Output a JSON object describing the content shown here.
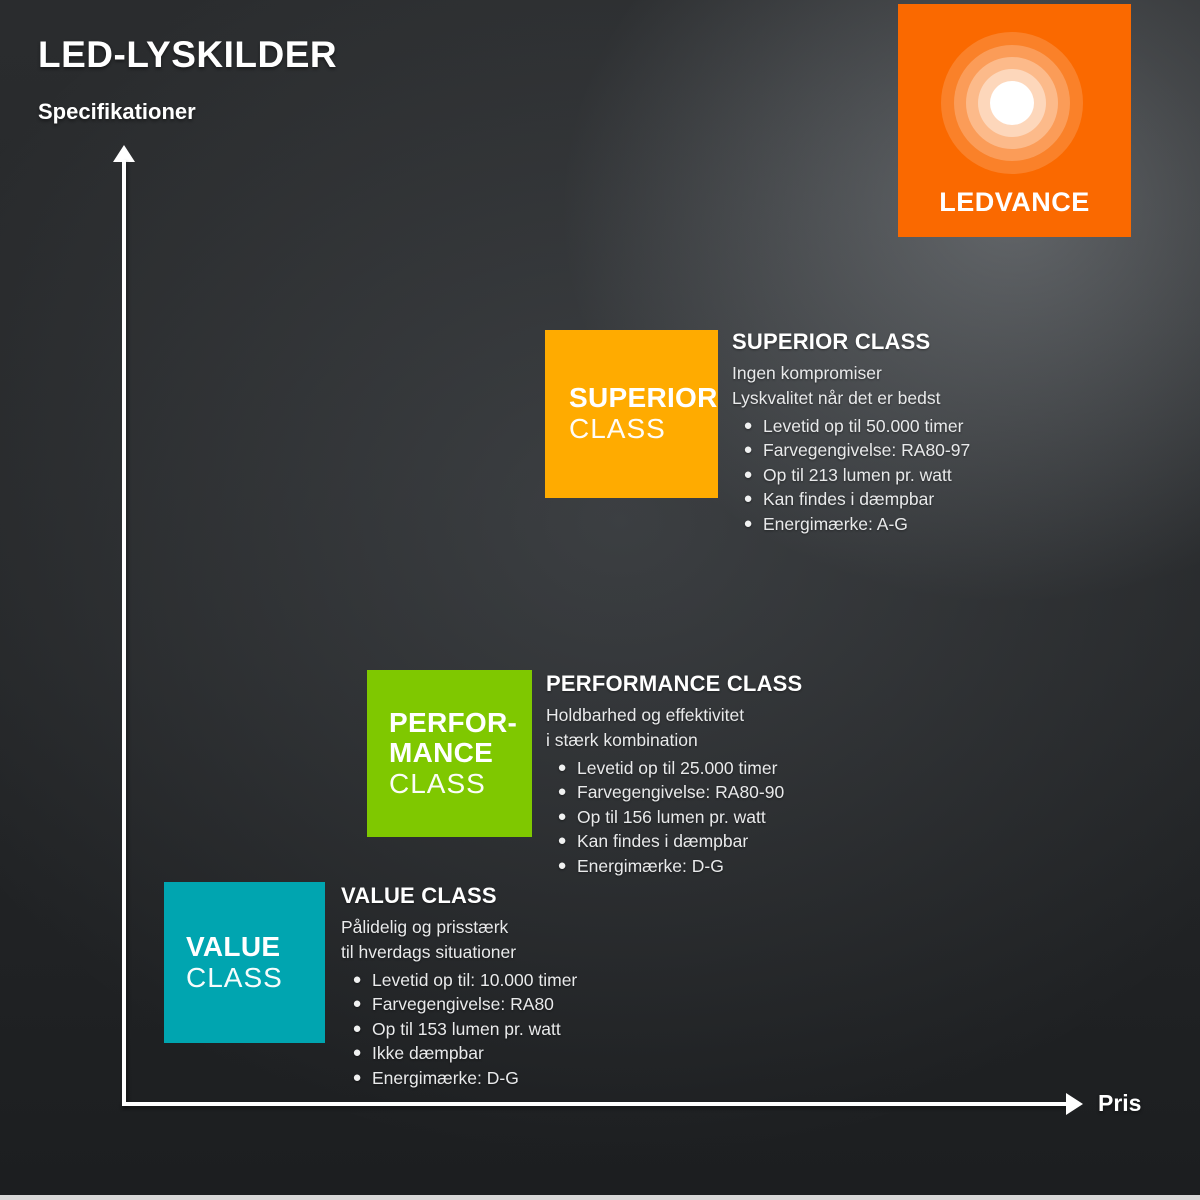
{
  "header": {
    "title": "LED-LYSKILDER",
    "y_axis_label": "Specifikationer",
    "x_axis_label": "Pris"
  },
  "logo": {
    "brand": "LEDVANCE",
    "background_color": "#FA6900"
  },
  "classes": [
    {
      "id": "value",
      "color": "#00A5B0",
      "box_title_lines": [
        "VALUE"
      ],
      "box_subtitle": "CLASS",
      "heading": "VALUE CLASS",
      "subtitle_lines": [
        "Pålidelig og prisstærk",
        "til hverdags situationer"
      ],
      "bullets": [
        "Levetid op til: 10.000 timer",
        "Farvegengivelse: RA80",
        "Op til 153 lumen pr. watt",
        "Ikke dæmpbar",
        "Energimærke: D-G"
      ]
    },
    {
      "id": "performance",
      "color": "#7FC800",
      "box_title_lines": [
        "PERFOR-",
        "MANCE"
      ],
      "box_subtitle": "CLASS",
      "heading": "PERFORMANCE CLASS",
      "subtitle_lines": [
        "Holdbarhed og effektivitet",
        "i stærk kombination"
      ],
      "bullets": [
        "Levetid op til 25.000 timer",
        "Farvegengivelse: RA80-90",
        "Op til 156 lumen pr. watt",
        "Kan findes i dæmpbar",
        "Energimærke: D-G"
      ]
    },
    {
      "id": "superior",
      "color": "#FFAB00",
      "box_title_lines": [
        "SUPERIOR"
      ],
      "box_subtitle": "CLASS",
      "heading": "SUPERIOR CLASS",
      "subtitle_lines": [
        "Ingen kompromiser",
        "Lyskvalitet når det er bedst"
      ],
      "bullets": [
        "Levetid op til 50.000 timer",
        "Farvegengivelse: RA80-97",
        "Op til 213 lumen pr. watt",
        "Kan findes i dæmpbar",
        "Energimærke: A-G"
      ]
    }
  ],
  "chart_data": {
    "type": "scatter",
    "title": "LED-LYSKILDER",
    "subtitle": "Specifikationer",
    "xlabel": "Pris",
    "ylabel": "Specifikationer",
    "x_axis_type": "qualitative-no-ticks",
    "y_axis_type": "qualitative-no-ticks",
    "legend_position": "none",
    "grid": false,
    "points": [
      {
        "label": "VALUE CLASS",
        "x_rel": 0.13,
        "y_rel": 0.15,
        "color": "#00A5B0"
      },
      {
        "label": "PERFORMANCE CLASS",
        "x_rel": 0.34,
        "y_rel": 0.37,
        "color": "#7FC800"
      },
      {
        "label": "SUPERIOR CLASS",
        "x_rel": 0.53,
        "y_rel": 0.72,
        "color": "#FFAB00"
      }
    ]
  }
}
